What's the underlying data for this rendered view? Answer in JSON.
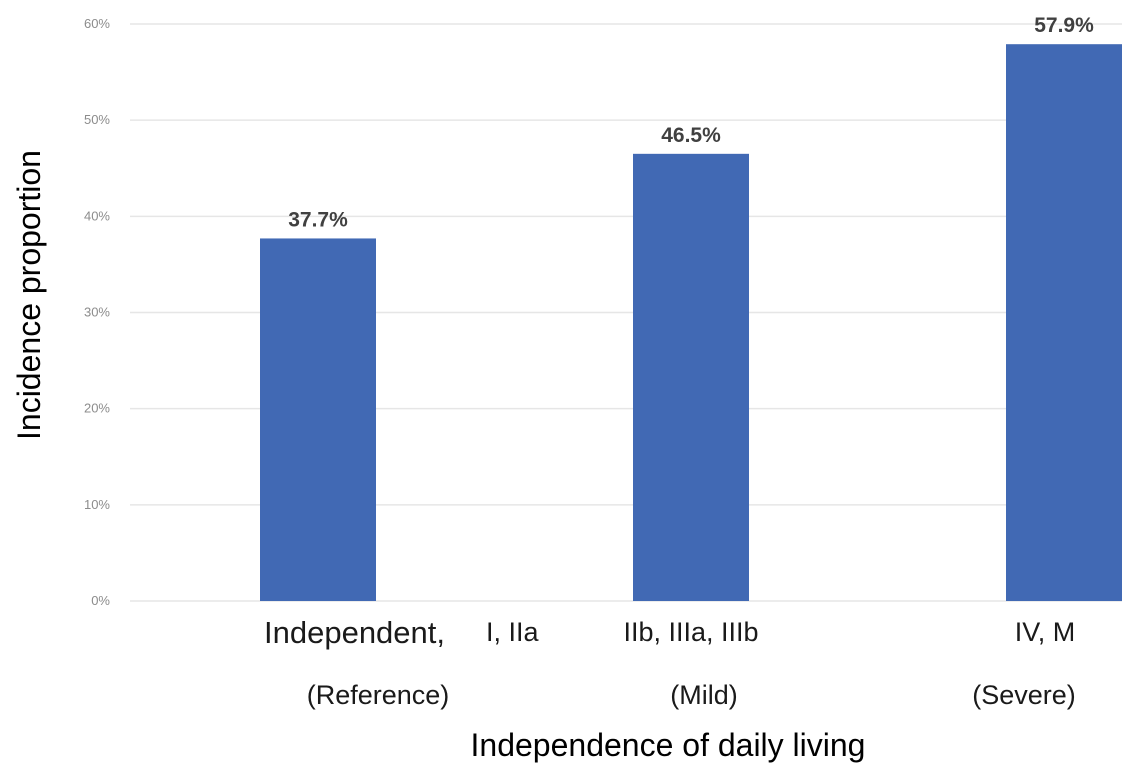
{
  "chart_data": {
    "type": "bar",
    "title": "",
    "xlabel": "Independence of daily living",
    "ylabel": "Incidence proportion",
    "ylim": [
      0,
      60
    ],
    "yticks": [
      0,
      10,
      20,
      30,
      40,
      50,
      60
    ],
    "ytick_labels": [
      "0%",
      "10%",
      "20%",
      "30%",
      "40%",
      "50%",
      "60%"
    ],
    "categories": [
      {
        "primary": "Independent,",
        "secondary": "I, IIa",
        "group": "(Reference)"
      },
      {
        "primary": "",
        "secondary": "IIb, IIIa, IIIb",
        "group": "(Mild)"
      },
      {
        "primary": "",
        "secondary": "IV, M",
        "group": "(Severe)"
      }
    ],
    "values": [
      37.7,
      46.5,
      57.9
    ],
    "value_labels": [
      "37.7%",
      "46.5%",
      "57.9%"
    ],
    "grid": true,
    "legend": "none",
    "bar_color": "#4169b4",
    "grid_color": "#e6e6e6"
  }
}
